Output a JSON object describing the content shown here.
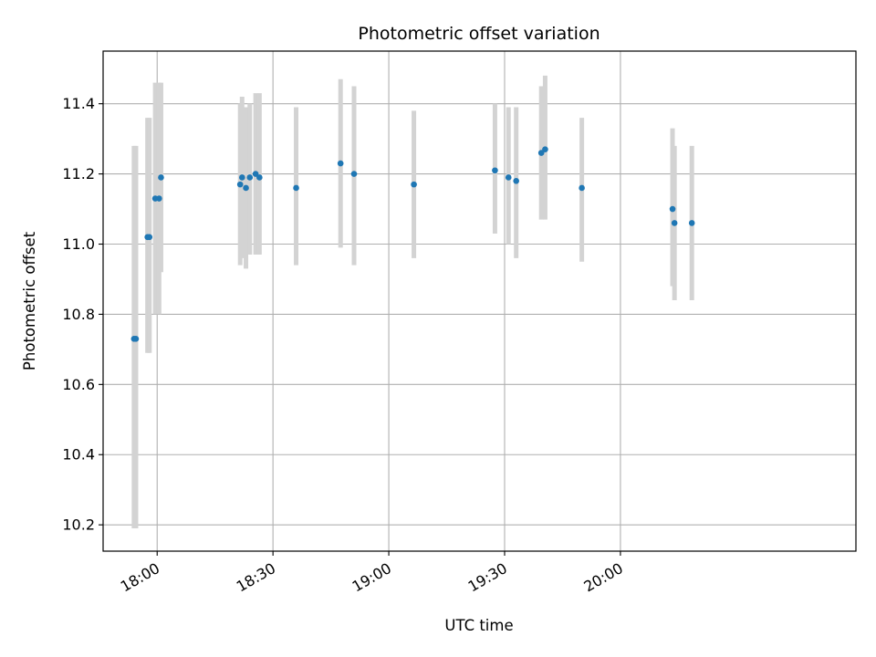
{
  "chart_data": {
    "type": "scatter",
    "title": "Photometric offset variation",
    "xlabel": "UTC time",
    "ylabel": "Photometric offset",
    "grid": true,
    "xlim": [
      "17:46",
      "21:01"
    ],
    "ylim": [
      10.125,
      11.55
    ],
    "x_ticks": [
      "18:00",
      "18:30",
      "19:00",
      "19:30",
      "20:00"
    ],
    "y_ticks": [
      "10.2",
      "10.4",
      "10.6",
      "10.8",
      "11.0",
      "11.2",
      "11.4"
    ],
    "colors": {
      "point": "#1f77b4",
      "errorbar": "#d3d3d3"
    },
    "series": [
      {
        "points": [
          {
            "x": "17:54:00",
            "y": 10.73,
            "err_low": 10.19,
            "err_high": 11.28
          },
          {
            "x": "17:54:30",
            "y": 10.73,
            "err_low": 10.19,
            "err_high": 11.28
          },
          {
            "x": "17:57:30",
            "y": 11.02,
            "err_low": 10.69,
            "err_high": 11.36
          },
          {
            "x": "17:58:00",
            "y": 11.02,
            "err_low": 10.69,
            "err_high": 11.36
          },
          {
            "x": "17:59:30",
            "y": 11.13,
            "err_low": 10.8,
            "err_high": 11.46
          },
          {
            "x": "18:00:30",
            "y": 11.13,
            "err_low": 10.8,
            "err_high": 11.46
          },
          {
            "x": "18:01:00",
            "y": 11.19,
            "err_low": 10.92,
            "err_high": 11.46
          },
          {
            "x": "18:21:30",
            "y": 11.17,
            "err_low": 10.94,
            "err_high": 11.4
          },
          {
            "x": "18:22:00",
            "y": 11.19,
            "err_low": 10.96,
            "err_high": 11.42
          },
          {
            "x": "18:23:00",
            "y": 11.16,
            "err_low": 10.93,
            "err_high": 11.39
          },
          {
            "x": "18:24:00",
            "y": 11.19,
            "err_low": 10.97,
            "err_high": 11.4
          },
          {
            "x": "18:25:30",
            "y": 11.2,
            "err_low": 10.97,
            "err_high": 11.43
          },
          {
            "x": "18:26:30",
            "y": 11.19,
            "err_low": 10.97,
            "err_high": 11.43
          },
          {
            "x": "18:36:00",
            "y": 11.16,
            "err_low": 10.94,
            "err_high": 11.39
          },
          {
            "x": "18:47:30",
            "y": 11.23,
            "err_low": 10.99,
            "err_high": 11.47
          },
          {
            "x": "18:51:00",
            "y": 11.2,
            "err_low": 10.94,
            "err_high": 11.45
          },
          {
            "x": "19:06:30",
            "y": 11.17,
            "err_low": 10.96,
            "err_high": 11.38
          },
          {
            "x": "19:27:30",
            "y": 11.21,
            "err_low": 11.03,
            "err_high": 11.4
          },
          {
            "x": "19:31:00",
            "y": 11.19,
            "err_low": 11.0,
            "err_high": 11.39
          },
          {
            "x": "19:33:00",
            "y": 11.18,
            "err_low": 10.96,
            "err_high": 11.39
          },
          {
            "x": "19:39:30",
            "y": 11.26,
            "err_low": 11.07,
            "err_high": 11.45
          },
          {
            "x": "19:40:30",
            "y": 11.27,
            "err_low": 11.07,
            "err_high": 11.48
          },
          {
            "x": "19:50:00",
            "y": 11.16,
            "err_low": 10.95,
            "err_high": 11.36
          },
          {
            "x": "20:13:30",
            "y": 11.1,
            "err_low": 10.88,
            "err_high": 11.33
          },
          {
            "x": "20:14:00",
            "y": 11.06,
            "err_low": 10.84,
            "err_high": 11.28
          },
          {
            "x": "20:18:30",
            "y": 11.06,
            "err_low": 10.84,
            "err_high": 11.28
          }
        ]
      }
    ]
  }
}
